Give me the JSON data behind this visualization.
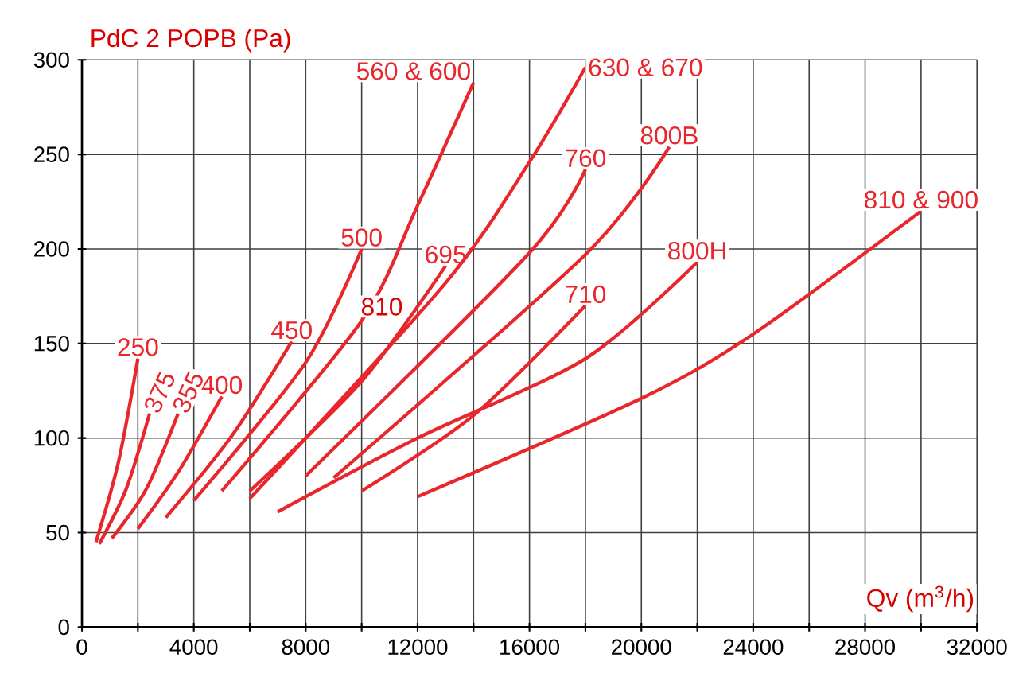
{
  "chart_data": {
    "type": "line",
    "ylabel": "PdC 2 POPB (Pa)",
    "xlabel": "Qv (m$^{3}$/h)",
    "xlim": [
      0,
      32000
    ],
    "ylim": [
      0,
      300
    ],
    "xticks": [
      0,
      {
        "value": 2000,
        "label": null
      },
      4000,
      {
        "value": 6000,
        "label": null
      },
      8000,
      {
        "value": 10000,
        "label": null
      },
      12000,
      {
        "value": 14000,
        "label": null
      },
      16000,
      {
        "value": 18000,
        "label": null
      },
      20000,
      {
        "value": 22000,
        "label": null
      },
      24000,
      {
        "value": 26000,
        "label": null
      },
      28000,
      {
        "value": 30000,
        "label": null
      },
      32000
    ],
    "yticks": [
      0,
      50,
      100,
      150,
      200,
      250,
      300
    ],
    "grid": true,
    "legend": false,
    "marker": "none",
    "line_style": "solid",
    "series": [
      {
        "name": "250",
        "color": "#e8262b",
        "x": [
          500,
          1300,
          2000
        ],
        "values": [
          45,
          87,
          142
        ]
      },
      {
        "name": "375",
        "color": "#e8262b",
        "x": [
          620,
          1580,
          2420
        ],
        "values": [
          44,
          73,
          113
        ]
      },
      {
        "name": "355",
        "color": "#e8262b",
        "x": [
          1070,
          2300,
          3440
        ],
        "values": [
          47,
          73,
          113
        ]
      },
      {
        "name": "400",
        "color": "#e8262b",
        "x": [
          2000,
          3440,
          5000
        ],
        "values": [
          52,
          82,
          122
        ]
      },
      {
        "name": "450",
        "color": "#e8262b",
        "x": [
          3000,
          5350,
          7500
        ],
        "values": [
          58,
          101,
          151
        ]
      },
      {
        "name": "500",
        "color": "#e8262b",
        "x": [
          4000,
          8000,
          10000
        ],
        "values": [
          67,
          140,
          200
        ]
      },
      {
        "name": "560 & 600",
        "color": "#e8262b",
        "x": [
          5000,
          10000,
          12000,
          14000
        ],
        "values": [
          72,
          162,
          223,
          288
        ]
      },
      {
        "name": "695",
        "color": "#e8262b",
        "x": [
          6000,
          10000,
          13000
        ],
        "values": [
          72,
          130,
          191
        ]
      },
      {
        "name": "630 & 670",
        "color": "#e8262b",
        "x": [
          6000,
          13000,
          16000,
          18000
        ],
        "values": [
          68,
          182,
          246,
          296
        ]
      },
      {
        "name": "760",
        "color": "#e8262b",
        "x": [
          8000,
          16000,
          18000
        ],
        "values": [
          80,
          198,
          242
        ]
      },
      {
        "name": "800B",
        "color": "#e8262b",
        "x": [
          9000,
          18000,
          21000
        ],
        "values": [
          79,
          197,
          254
        ]
      },
      {
        "name": "710",
        "color": "#e8262b",
        "x": [
          10000,
          14000,
          18000
        ],
        "values": [
          72,
          112,
          170
        ]
      },
      {
        "name": "800H",
        "color": "#e8262b",
        "x": [
          7000,
          12000,
          18000,
          22000
        ],
        "values": [
          61,
          100,
          142,
          193
        ]
      },
      {
        "name": "810 & 900",
        "color": "#e8262b",
        "x": [
          12000,
          20000,
          24000,
          30000
        ],
        "values": [
          69,
          121,
          155,
          220
        ]
      }
    ],
    "annotations": [
      "810"
    ]
  }
}
